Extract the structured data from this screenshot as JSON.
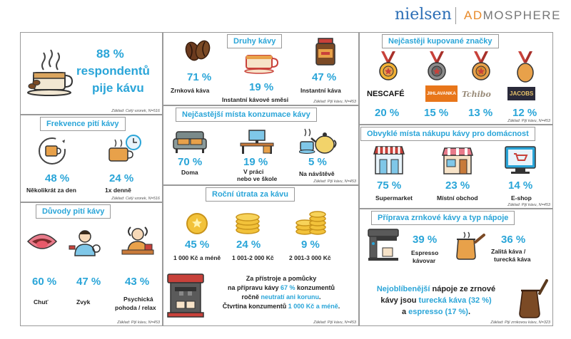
{
  "header": {
    "nielsen": "nielsen",
    "admosphere_ad": "AD",
    "admosphere_rest": "MOSPHERE"
  },
  "hero": {
    "percent": "88 %",
    "line1": "respondentů",
    "line2": "pije kávu",
    "note": "Základ: Celý vzorek, N=516"
  },
  "types": {
    "title": "Druhy kávy",
    "items": [
      {
        "pct": "71 %",
        "label": "Zrnková  káva"
      },
      {
        "pct": "19 %",
        "label": "Instantní kávové směsi"
      },
      {
        "pct": "47 %",
        "label": "Instantní káva"
      }
    ],
    "note": "Základ: Pijí kávu, N=453"
  },
  "brands": {
    "title": "Nejčastěji kupované značky",
    "items": [
      {
        "pct": "20 %",
        "name": "NESCAFÉ"
      },
      {
        "pct": "15 %",
        "name": "JIHLAVANKA"
      },
      {
        "pct": "13 %",
        "name": "Tchibo"
      },
      {
        "pct": "12 %",
        "name": "JACOBS"
      }
    ],
    "note": "Základ: Pijí kávu, N=453"
  },
  "frequency": {
    "title": "Frekvence pití kávy",
    "items": [
      {
        "pct": "48 %",
        "label": "Několikrát za den"
      },
      {
        "pct": "24 %",
        "label": "1x denně"
      }
    ],
    "note": "Základ: Celý vzorek, N=516"
  },
  "places": {
    "title": "Nejčastější místa konzumace kávy",
    "items": [
      {
        "pct": "70 %",
        "label": "Doma"
      },
      {
        "pct": "19 %",
        "label1": "V práci",
        "label2": "nebo ve škole"
      },
      {
        "pct": "5 %",
        "label": "Na návštěvě"
      }
    ],
    "note": "Základ: Pijí kávu, N=453"
  },
  "shopping": {
    "title": "Obvyklé místa nákupu kávy pro domácnost",
    "items": [
      {
        "pct": "75 %",
        "label": "Supermarket"
      },
      {
        "pct": "23 %",
        "label": "Místní obchod"
      },
      {
        "pct": "14 %",
        "label": "E-shop"
      }
    ],
    "note": "Základ: Pijí kávu, N=453"
  },
  "reasons": {
    "title": "Důvody pití kávy",
    "items": [
      {
        "pct": "60 %",
        "label": "Chuť"
      },
      {
        "pct": "47 %",
        "label": "Zvyk"
      },
      {
        "pct": "43 %",
        "label1": "Psychická",
        "label2": "pohoda / relax"
      }
    ],
    "note": "Základ: Pijí kávu, N=453"
  },
  "spend": {
    "title": "Roční útrata za kávu",
    "items": [
      {
        "pct": "45 %",
        "label": "1 000 Kč a méně"
      },
      {
        "pct": "24 %",
        "label": "1 001-2 000 Kč"
      },
      {
        "pct": "9 %",
        "label": "2 001-3 000 Kč"
      }
    ],
    "text": {
      "l1": "Za přístroje a pomůcky",
      "l2a": "na přípravu kávy ",
      "l2b": "67 %",
      "l2c": " konzumentů",
      "l3a": "ročně ",
      "l3b": "neutratí ani korunu",
      "l4a": "Čtvrtina konzumentů ",
      "l4b": "1 000 Kč a méně"
    },
    "note": "Základ: Pijí kávu, N=453"
  },
  "prep": {
    "title": "Příprava zrnkové kávy a typ nápoje",
    "items": [
      {
        "pct": "39 %",
        "label1": "Espresso",
        "label2": "kávovar"
      },
      {
        "pct": "36 %",
        "label1": "Zalitá káva /",
        "label2": "turecká káva"
      }
    ],
    "text": {
      "l1a": "Nejoblíbenější",
      "l1b": " nápoje ze zrnové",
      "l2a": "kávy jsou ",
      "l2b": "turecká káva (32 %)",
      "l3a": "a ",
      "l3b": "espresso (17 %)",
      "l3c": "."
    },
    "note": "Základ: Pijí zrnkovou kávu, N=323"
  },
  "colors": {
    "accent": "#2aa5d8",
    "orange": "#e8a14a",
    "red": "#c8413a",
    "teal": "#3fb0b0"
  }
}
